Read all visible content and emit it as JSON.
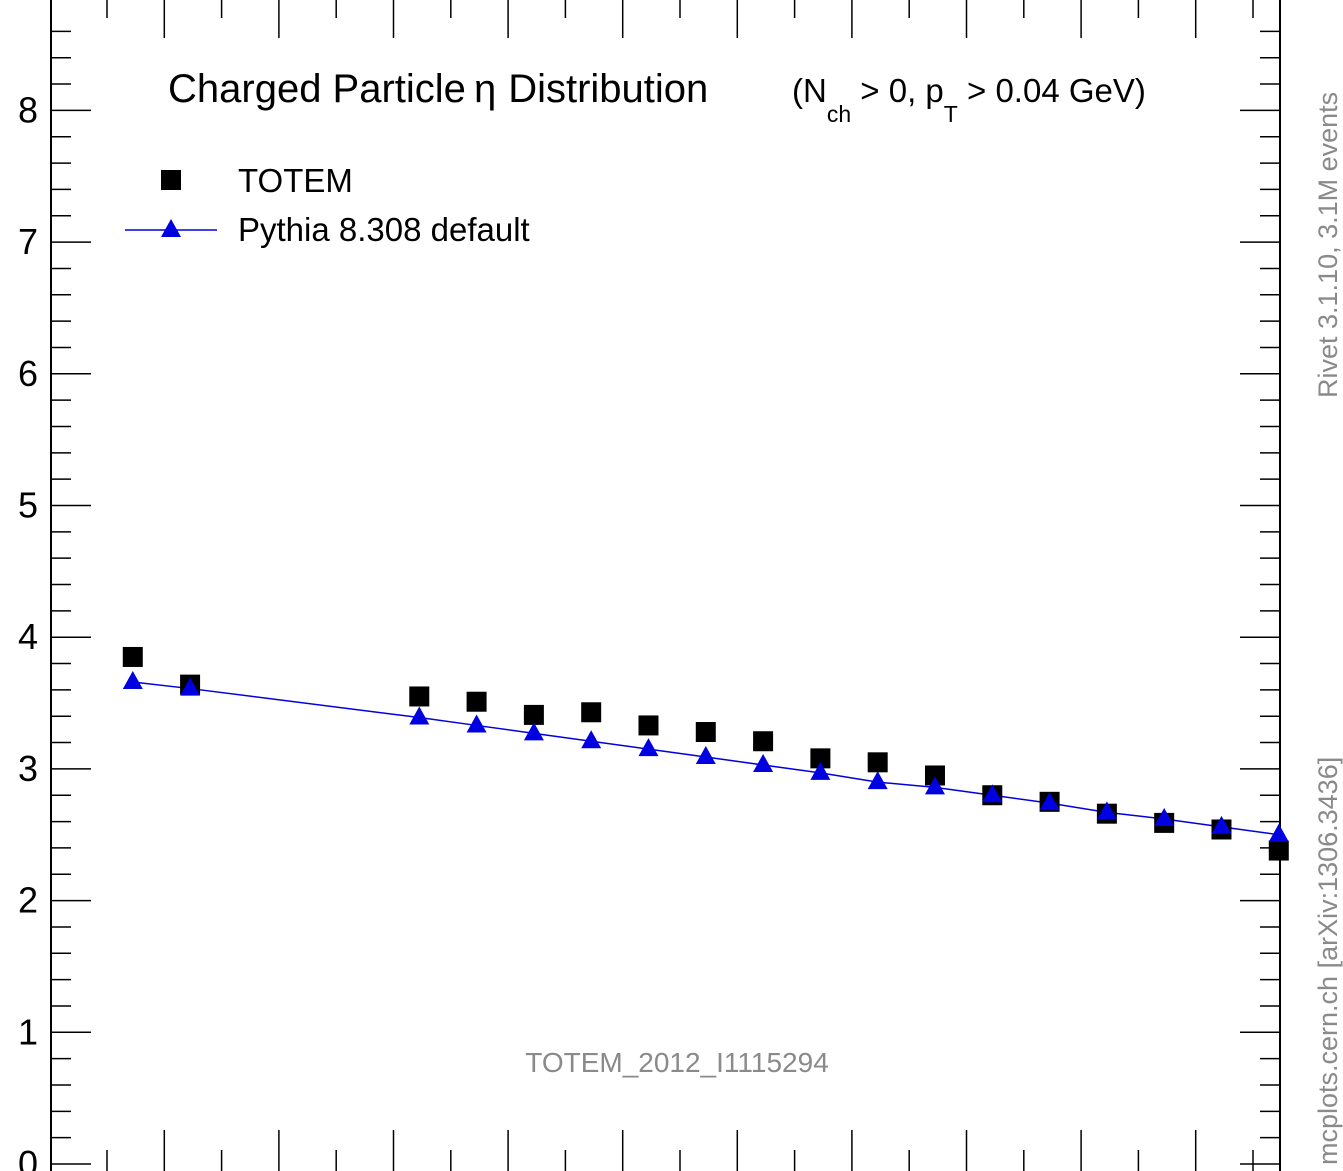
{
  "chart_data": {
    "type": "scatter",
    "title": "Charged Particle",
    "title_symbol": "η",
    "title_suffix": "Distribution",
    "cut_label": {
      "open": "(N",
      "nch_sub": "ch",
      "mid": " > 0, p",
      "pt_sub": "T",
      "close": " > 0.04 GeV)"
    },
    "watermark": "TOTEM_2012_I1115294",
    "side_label_top": "Rivet 3.1.10,  3.1M events",
    "side_label_bottom": "mcplots.cern.ch [arXiv:1306.3436]",
    "legend_placement": "top-left",
    "ylim": [
      0,
      8.75
    ],
    "xlim": [
      -0.5,
      20.9
    ],
    "y_ticks": [
      "0",
      "1",
      "2",
      "3",
      "4",
      "5",
      "6",
      "7",
      "8"
    ],
    "x_major_ticks": [
      1,
      3,
      5,
      7,
      9,
      11,
      13,
      15,
      17,
      19
    ],
    "x_minor_ticks": [
      0,
      2,
      4,
      6,
      8,
      10,
      12,
      14,
      16,
      18,
      20
    ],
    "series": [
      {
        "name": "TOTEM",
        "marker": "square",
        "color": "#000000",
        "x": [
          0.45,
          1.45,
          5.45,
          6.45,
          7.45,
          8.45,
          9.45,
          10.45,
          11.45,
          12.45,
          13.45,
          14.45,
          15.45,
          16.45,
          17.45,
          18.45,
          19.45,
          20.45
        ],
        "y": [
          3.85,
          3.64,
          3.55,
          3.51,
          3.41,
          3.43,
          3.33,
          3.28,
          3.21,
          3.08,
          3.05,
          2.95,
          2.8,
          2.75,
          2.66,
          2.59,
          2.54,
          2.38
        ]
      },
      {
        "name": "Pythia 8.308 default",
        "marker": "triangle",
        "line": true,
        "color": "#0000e0",
        "x": [
          0.45,
          1.45,
          5.45,
          6.45,
          7.45,
          8.45,
          9.45,
          10.45,
          11.45,
          12.45,
          13.45,
          14.45,
          15.45,
          16.45,
          17.45,
          18.45,
          19.45,
          20.45
        ],
        "y": [
          3.66,
          3.61,
          3.39,
          3.33,
          3.27,
          3.21,
          3.15,
          3.09,
          3.03,
          2.97,
          2.9,
          2.86,
          2.8,
          2.74,
          2.67,
          2.62,
          2.56,
          2.5
        ]
      }
    ]
  }
}
